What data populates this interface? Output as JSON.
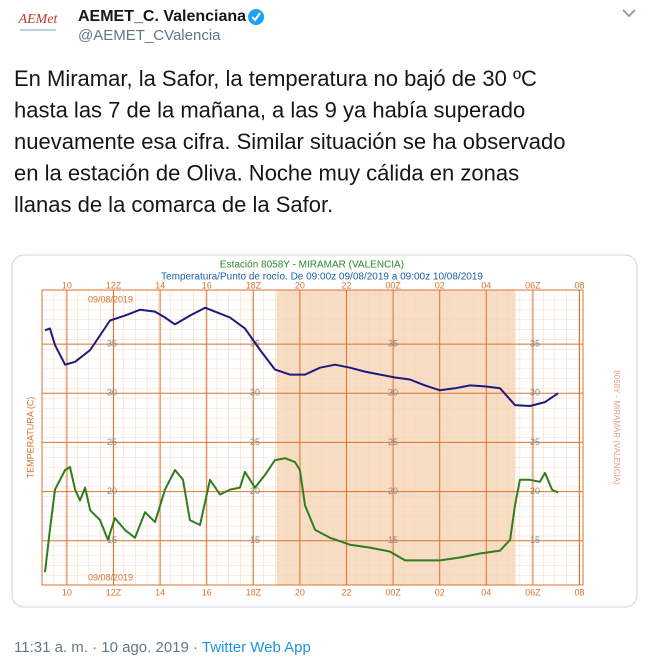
{
  "header": {
    "avatar_text": "AEMet",
    "name": "AEMET_C. Valenciana",
    "handle": "@AEMET_CValencia"
  },
  "text": {
    "lines": [
      "En Miramar, la Safor, la temperatura no bajó de 30 ºC",
      "hasta las 7 de la mañana, a las 9 ya había superado",
      "nuevamente esa cifra. Similar situación se ha observado",
      "en la estación de Oliva. Noche muy cálida en zonas",
      "llanas de la comarca de la Safor."
    ]
  },
  "chart_data": {
    "type": "line",
    "title": "Estación 8058Y - MIRAMAR (VALENCIA)",
    "subtitle": "Temperatura/Punto de rocío. De 09:00z 09/08/2019 a 09:00z 10/08/2019",
    "ylabel": "TEMPERATURA (C)",
    "right_label": "8058Y - MIRAMAR (VALENCIA)",
    "date_top": "09/08/2019",
    "date_bottom": "09/08/2019",
    "xlim": [
      8.93,
      32.15
    ],
    "ylim": [
      10.5,
      40.5
    ],
    "xticks": [
      10,
      {
        "value": 12,
        "label": "12Z"
      },
      14,
      16,
      {
        "value": 18,
        "label": "18Z"
      },
      20,
      22,
      {
        "value": 24,
        "label": "00Z"
      },
      {
        "value": 26,
        "label": "02"
      },
      {
        "value": 28,
        "label": "04"
      },
      {
        "value": 30,
        "label": "06Z"
      },
      {
        "value": 32,
        "label": "08"
      }
    ],
    "yticks": [
      15,
      20,
      25,
      30,
      35
    ],
    "grid": true,
    "shaded_range": [
      19.0,
      29.25
    ],
    "series": [
      {
        "color": "#1c1a7e",
        "x": [
          9.06,
          9.27,
          9.49,
          9.92,
          10.35,
          11.0,
          11.85,
          12.49,
          13.14,
          13.78,
          14.21,
          14.64,
          15.28,
          15.93,
          16.35,
          17.0,
          17.64,
          18.29,
          18.93,
          19.57,
          20.22,
          20.86,
          21.51,
          22.15,
          22.79,
          23.44,
          24.08,
          24.72,
          25.37,
          26.01,
          26.65,
          27.3,
          27.94,
          28.59,
          29.23,
          29.87,
          30.52,
          31.08
        ],
        "values": [
          36.4,
          36.6,
          34.9,
          32.9,
          33.2,
          34.4,
          37.4,
          37.9,
          38.5,
          38.3,
          37.7,
          37.0,
          37.9,
          38.7,
          38.3,
          37.7,
          36.6,
          34.4,
          32.4,
          31.9,
          31.9,
          32.6,
          32.9,
          32.6,
          32.2,
          31.9,
          31.6,
          31.4,
          30.8,
          30.3,
          30.5,
          30.8,
          30.7,
          30.5,
          28.8,
          28.7,
          29.1,
          30.0
        ]
      },
      {
        "color": "#2f7d1f",
        "x": [
          9.06,
          9.27,
          9.49,
          9.92,
          10.13,
          10.35,
          10.56,
          10.78,
          11.0,
          11.42,
          11.76,
          12.06,
          12.49,
          12.92,
          13.35,
          13.78,
          14.21,
          14.64,
          14.98,
          15.28,
          15.71,
          16.14,
          16.57,
          17.0,
          17.43,
          17.64,
          18.07,
          18.5,
          18.93,
          19.36,
          19.79,
          20.0,
          20.22,
          20.65,
          21.29,
          22.15,
          23.01,
          23.87,
          24.51,
          25.15,
          26.01,
          26.87,
          27.73,
          28.59,
          29.02,
          29.23,
          29.44,
          29.87,
          30.3,
          30.52,
          30.82,
          31.08
        ],
        "values": [
          11.8,
          16.1,
          20.2,
          22.2,
          22.5,
          20.2,
          19.1,
          20.4,
          18.1,
          17.1,
          15.1,
          17.3,
          16.1,
          15.3,
          17.9,
          16.9,
          20.2,
          22.2,
          21.2,
          17.1,
          16.6,
          21.2,
          19.7,
          20.2,
          20.4,
          22.0,
          20.4,
          21.7,
          23.2,
          23.4,
          23.0,
          22.2,
          18.6,
          16.1,
          15.3,
          14.6,
          14.3,
          13.9,
          13.0,
          13.0,
          13.0,
          13.3,
          13.7,
          14.0,
          15.1,
          18.6,
          21.2,
          21.2,
          21.0,
          21.9,
          20.2,
          19.9
        ]
      }
    ]
  },
  "footer": {
    "meta": "11:31 a. m. · 10 ago. 2019 ·",
    "source": "Twitter Web App"
  }
}
